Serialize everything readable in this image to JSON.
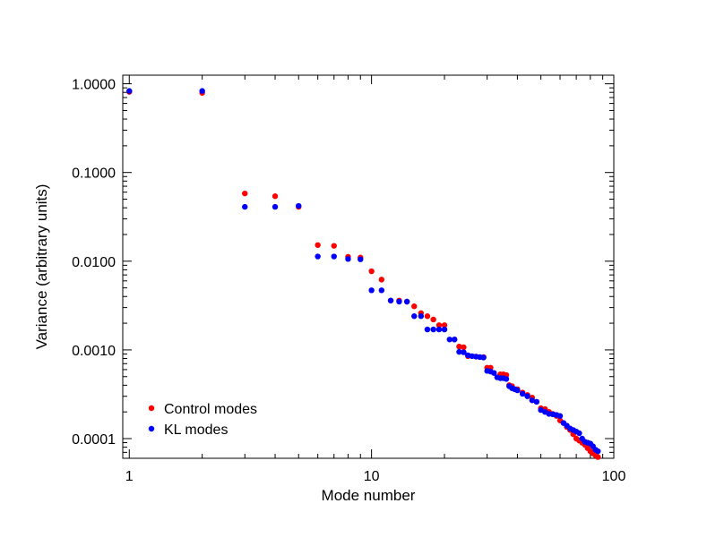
{
  "chart_data": {
    "type": "scatter",
    "xlabel": "Mode number",
    "ylabel": "Variance (arbitrary units)",
    "x_scale": "log",
    "y_scale": "log",
    "xlim": [
      0.94,
      100
    ],
    "ylim": [
      6e-05,
      1.25
    ],
    "x_ticks": [
      {
        "value": 1,
        "label": "1"
      },
      {
        "value": 10,
        "label": "10"
      },
      {
        "value": 100,
        "label": "100"
      }
    ],
    "y_ticks": [
      {
        "value": 1,
        "label": "1.0000"
      },
      {
        "value": 0.1,
        "label": "0.1000"
      },
      {
        "value": 0.01,
        "label": "0.0100"
      },
      {
        "value": 0.001,
        "label": "0.0010"
      },
      {
        "value": 0.0001,
        "label": "0.0001"
      }
    ],
    "legend_position": "bottom-left",
    "grid": false,
    "series": [
      {
        "name": "Control modes",
        "color": "#ff0000",
        "points": [
          [
            1,
            0.81
          ],
          [
            2,
            0.79
          ],
          [
            3,
            0.058
          ],
          [
            4,
            0.054
          ],
          [
            5,
            0.041
          ],
          [
            6,
            0.0152
          ],
          [
            7,
            0.0149
          ],
          [
            8,
            0.0112
          ],
          [
            9,
            0.011
          ],
          [
            10,
            0.0077
          ],
          [
            11,
            0.0062
          ],
          [
            12,
            0.0036
          ],
          [
            13,
            0.0036
          ],
          [
            14,
            0.0035
          ],
          [
            15,
            0.0031
          ],
          [
            16,
            0.0026
          ],
          [
            17,
            0.0024
          ],
          [
            18,
            0.0022
          ],
          [
            19,
            0.0019
          ],
          [
            20,
            0.0019
          ],
          [
            22,
            0.00131
          ],
          [
            23,
            0.00109
          ],
          [
            24,
            0.00107
          ],
          [
            25,
            0.00085
          ],
          [
            27,
            0.00084
          ],
          [
            29,
            0.00083
          ],
          [
            30,
            0.00063
          ],
          [
            31,
            0.00063
          ],
          [
            32,
            0.00055
          ],
          [
            34,
            0.00053
          ],
          [
            35,
            0.00053
          ],
          [
            36,
            0.00052
          ],
          [
            37,
            0.0004
          ],
          [
            38,
            0.00039
          ],
          [
            40,
            0.00036
          ],
          [
            42,
            0.00033
          ],
          [
            44,
            0.00031
          ],
          [
            46,
            0.00029
          ],
          [
            48,
            0.00026
          ],
          [
            50,
            0.00022
          ],
          [
            52,
            0.000215
          ],
          [
            54,
            0.0002
          ],
          [
            56,
            0.00019
          ],
          [
            58,
            0.00018
          ],
          [
            60,
            0.00016
          ],
          [
            62,
            0.00015
          ],
          [
            64,
            0.000135
          ],
          [
            66,
            0.000125
          ],
          [
            68,
            0.000112
          ],
          [
            70,
            0.0001
          ],
          [
            72,
            9.5e-05
          ],
          [
            74,
            9e-05
          ],
          [
            76,
            8.5e-05
          ],
          [
            78,
            7.8e-05
          ],
          [
            80,
            7.2e-05
          ],
          [
            82,
            6.8e-05
          ],
          [
            84,
            6.5e-05
          ],
          [
            86,
            6.2e-05
          ]
        ]
      },
      {
        "name": "KL modes",
        "color": "#0000ff",
        "points": [
          [
            1,
            0.83
          ],
          [
            2,
            0.83
          ],
          [
            3,
            0.041
          ],
          [
            4,
            0.041
          ],
          [
            5,
            0.042
          ],
          [
            6,
            0.0113
          ],
          [
            7,
            0.0113
          ],
          [
            8,
            0.0106
          ],
          [
            9,
            0.0105
          ],
          [
            10,
            0.0047
          ],
          [
            11,
            0.0047
          ],
          [
            12,
            0.0036
          ],
          [
            13,
            0.0035
          ],
          [
            14,
            0.0035
          ],
          [
            15,
            0.0024
          ],
          [
            16,
            0.0024
          ],
          [
            17,
            0.0017
          ],
          [
            18,
            0.0017
          ],
          [
            19,
            0.0017
          ],
          [
            20,
            0.0017
          ],
          [
            21,
            0.00131
          ],
          [
            22,
            0.00131
          ],
          [
            23,
            0.00095
          ],
          [
            24,
            0.00094
          ],
          [
            25,
            0.00087
          ],
          [
            26,
            0.00085
          ],
          [
            27,
            0.00084
          ],
          [
            28,
            0.00083
          ],
          [
            29,
            0.00082
          ],
          [
            30,
            0.00058
          ],
          [
            31,
            0.00057
          ],
          [
            32,
            0.00055
          ],
          [
            33,
            0.00049
          ],
          [
            34,
            0.00048
          ],
          [
            35,
            0.00048
          ],
          [
            36,
            0.00047
          ],
          [
            37,
            0.00039
          ],
          [
            38,
            0.00037
          ],
          [
            39,
            0.00036
          ],
          [
            40,
            0.00035
          ],
          [
            42,
            0.00032
          ],
          [
            44,
            0.0003
          ],
          [
            46,
            0.00027
          ],
          [
            48,
            0.00026
          ],
          [
            50,
            0.00021
          ],
          [
            52,
            0.0002
          ],
          [
            54,
            0.00019
          ],
          [
            56,
            0.000188
          ],
          [
            58,
            0.000185
          ],
          [
            60,
            0.00018
          ],
          [
            62,
            0.00015
          ],
          [
            64,
            0.00014
          ],
          [
            66,
            0.00013
          ],
          [
            68,
            0.000125
          ],
          [
            70,
            0.00012
          ],
          [
            72,
            0.000115
          ],
          [
            74,
            0.0001
          ],
          [
            76,
            9.2e-05
          ],
          [
            78,
            9e-05
          ],
          [
            80,
            8.8e-05
          ],
          [
            82,
            8.2e-05
          ],
          [
            84,
            7.5e-05
          ],
          [
            86,
            7.2e-05
          ]
        ]
      }
    ]
  }
}
